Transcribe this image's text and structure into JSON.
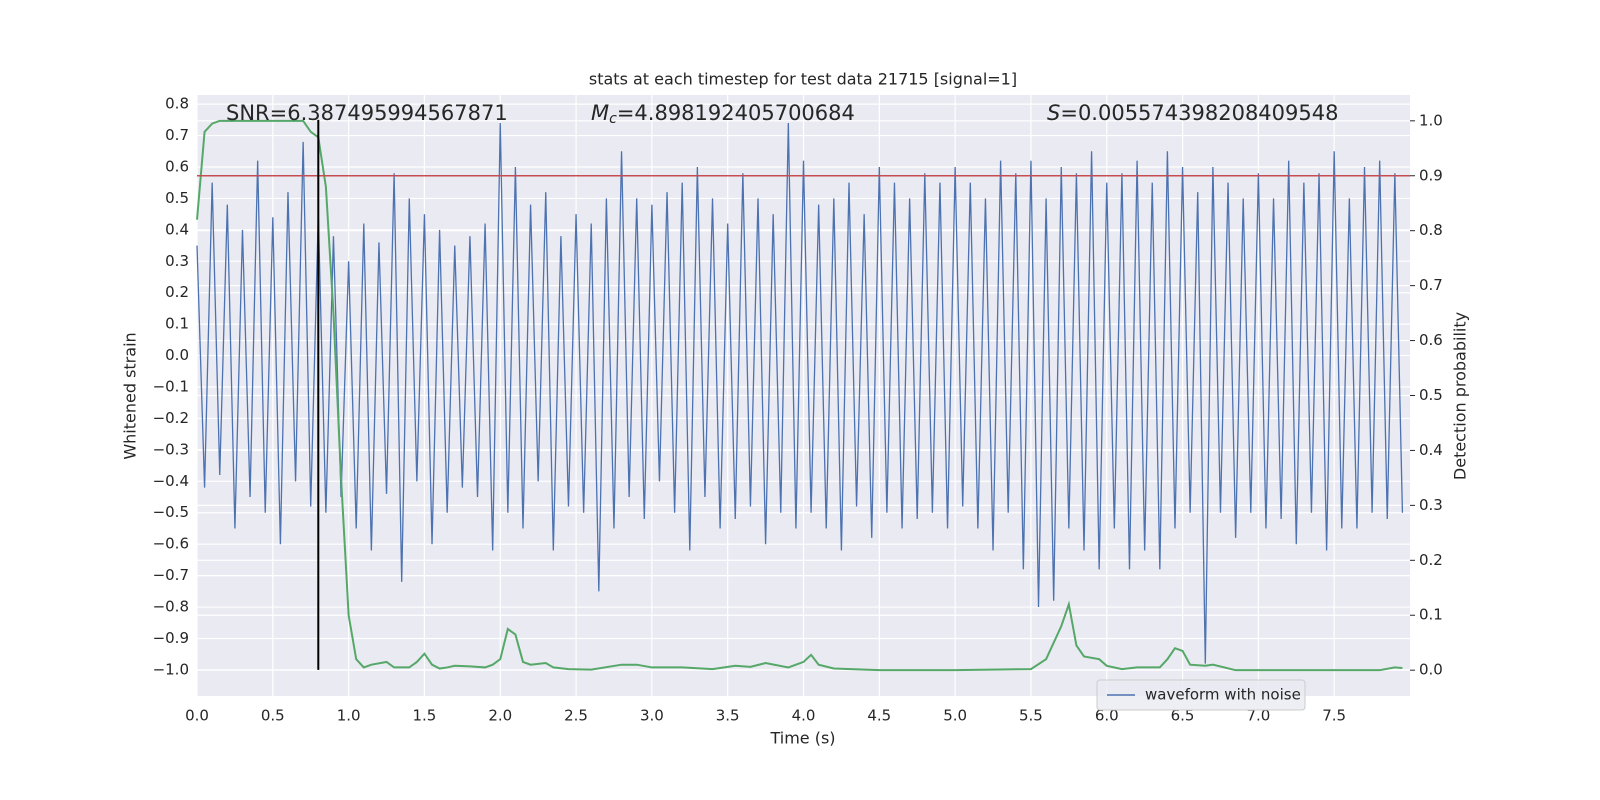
{
  "chart_data": {
    "type": "line",
    "title": "stats at each timestep for test data 21715 [signal=1]",
    "x_label": "Time (s)",
    "y_label": "Whitened strain",
    "y2_label": "Detection probability",
    "annotations": [
      {
        "label": "SNR=6.387495994567871"
      },
      {
        "symbol": "M",
        "subscript": "c",
        "label": "=4.898192405700684"
      },
      {
        "symbol": "S",
        "label": "=0.005574398208409548"
      }
    ],
    "xlim": [
      0,
      8
    ],
    "xticks": [
      {
        "value": 0,
        "label": "0.0"
      },
      {
        "value": 0.5,
        "label": "0.5"
      },
      {
        "value": 1,
        "label": "1.0"
      },
      {
        "value": 1.5,
        "label": "1.5"
      },
      {
        "value": 2,
        "label": "2.0"
      },
      {
        "value": 2.5,
        "label": "2.5"
      },
      {
        "value": 3,
        "label": "3.0"
      },
      {
        "value": 3.5,
        "label": "3.5"
      },
      {
        "value": 4,
        "label": "4.0"
      },
      {
        "value": 4.5,
        "label": "4.5"
      },
      {
        "value": 5,
        "label": "5.0"
      },
      {
        "value": 5.5,
        "label": "5.5"
      },
      {
        "value": 6,
        "label": "6.0"
      },
      {
        "value": 6.5,
        "label": "6.5"
      },
      {
        "value": 7,
        "label": "7.0"
      },
      {
        "value": 7.5,
        "label": "7.5"
      }
    ],
    "ylim": [
      -1.083,
      0.829
    ],
    "yticks": [
      {
        "value": -1.0,
        "label": "−1.0"
      },
      {
        "value": -0.9,
        "label": "−0.9"
      },
      {
        "value": -0.8,
        "label": "−0.8"
      },
      {
        "value": -0.7,
        "label": "−0.7"
      },
      {
        "value": -0.6,
        "label": "−0.6"
      },
      {
        "value": -0.5,
        "label": "−0.5"
      },
      {
        "value": -0.4,
        "label": "−0.4"
      },
      {
        "value": -0.3,
        "label": "−0.3"
      },
      {
        "value": -0.2,
        "label": "−0.2"
      },
      {
        "value": -0.1,
        "label": "−0.1"
      },
      {
        "value": 0,
        "label": "0.0"
      },
      {
        "value": 0.1,
        "label": "0.1"
      },
      {
        "value": 0.2,
        "label": "0.2"
      },
      {
        "value": 0.3,
        "label": "0.3"
      },
      {
        "value": 0.4,
        "label": "0.4"
      },
      {
        "value": 0.5,
        "label": "0.5"
      },
      {
        "value": 0.6,
        "label": "0.6"
      },
      {
        "value": 0.7,
        "label": "0.7"
      },
      {
        "value": 0.8,
        "label": "0.8"
      }
    ],
    "y2lim": [
      -0.047,
      1.047
    ],
    "y2ticks": [
      {
        "value": 0,
        "label": "0.0"
      },
      {
        "value": 0.1,
        "label": "0.1"
      },
      {
        "value": 0.2,
        "label": "0.2"
      },
      {
        "value": 0.3,
        "label": "0.3"
      },
      {
        "value": 0.4,
        "label": "0.4"
      },
      {
        "value": 0.5,
        "label": "0.5"
      },
      {
        "value": 0.6,
        "label": "0.6"
      },
      {
        "value": 0.7,
        "label": "0.7"
      },
      {
        "value": 0.8,
        "label": "0.8"
      },
      {
        "value": 0.9,
        "label": "0.9"
      },
      {
        "value": 1.0,
        "label": "1.0"
      }
    ],
    "grid": true,
    "legend": "lower right",
    "threshold": {
      "value": 0.9,
      "axis": "y2",
      "color": "#c44e52"
    },
    "vline": {
      "x": 0.8,
      "ymin": -1.0,
      "ymax": 0.75,
      "color": "#000000"
    },
    "series": [
      {
        "name": "waveform with noise",
        "color": "#4c72b0",
        "x": [
          0,
          0.05,
          0.1,
          0.15,
          0.2,
          0.25,
          0.3,
          0.35,
          0.4,
          0.45,
          0.5,
          0.55,
          0.6,
          0.65,
          0.7,
          0.75,
          0.8,
          0.85,
          0.9,
          0.95,
          1,
          1.05,
          1.1,
          1.15,
          1.2,
          1.25,
          1.3,
          1.35,
          1.4,
          1.45,
          1.5,
          1.55,
          1.6,
          1.65,
          1.7,
          1.75,
          1.8,
          1.85,
          1.9,
          1.95,
          2,
          2.05,
          2.1,
          2.15,
          2.2,
          2.25,
          2.3,
          2.35,
          2.4,
          2.45,
          2.5,
          2.55,
          2.6,
          2.65,
          2.7,
          2.75,
          2.8,
          2.85,
          2.9,
          2.95,
          3,
          3.05,
          3.1,
          3.15,
          3.2,
          3.25,
          3.3,
          3.35,
          3.4,
          3.45,
          3.5,
          3.55,
          3.6,
          3.65,
          3.7,
          3.75,
          3.8,
          3.85,
          3.9,
          3.95,
          4,
          4.05,
          4.1,
          4.15,
          4.2,
          4.25,
          4.3,
          4.35,
          4.4,
          4.45,
          4.5,
          4.55,
          4.6,
          4.65,
          4.7,
          4.75,
          4.8,
          4.85,
          4.9,
          4.95,
          5,
          5.05,
          5.1,
          5.15,
          5.2,
          5.25,
          5.3,
          5.35,
          5.4,
          5.45,
          5.5,
          5.55,
          5.6,
          5.65,
          5.7,
          5.75,
          5.8,
          5.85,
          5.9,
          5.95,
          6,
          6.05,
          6.1,
          6.15,
          6.2,
          6.25,
          6.3,
          6.35,
          6.4,
          6.45,
          6.5,
          6.55,
          6.6,
          6.65,
          6.7,
          6.75,
          6.8,
          6.85,
          6.9,
          6.95,
          7,
          7.05,
          7.1,
          7.15,
          7.2,
          7.25,
          7.3,
          7.35,
          7.4,
          7.45,
          7.5,
          7.55,
          7.6,
          7.65,
          7.7,
          7.75,
          7.8,
          7.85,
          7.9,
          7.95
        ],
        "values": [
          0.35,
          -0.42,
          0.55,
          -0.38,
          0.48,
          -0.55,
          0.4,
          -0.45,
          0.62,
          -0.5,
          0.44,
          -0.6,
          0.52,
          -0.4,
          0.68,
          -0.48,
          0.45,
          -0.5,
          0.38,
          -0.45,
          0.3,
          -0.55,
          0.42,
          -0.62,
          0.36,
          -0.44,
          0.58,
          -0.72,
          0.5,
          -0.4,
          0.45,
          -0.6,
          0.4,
          -0.5,
          0.35,
          -0.42,
          0.38,
          -0.45,
          0.42,
          -0.62,
          0.74,
          -0.5,
          0.6,
          -0.55,
          0.48,
          -0.4,
          0.52,
          -0.62,
          0.38,
          -0.48,
          0.45,
          -0.5,
          0.42,
          -0.75,
          0.5,
          -0.55,
          0.65,
          -0.45,
          0.5,
          -0.52,
          0.48,
          -0.4,
          0.52,
          -0.5,
          0.55,
          -0.62,
          0.6,
          -0.45,
          0.5,
          -0.55,
          0.42,
          -0.52,
          0.58,
          -0.48,
          0.5,
          -0.6,
          0.45,
          -0.5,
          0.74,
          -0.55,
          0.62,
          -0.5,
          0.48,
          -0.55,
          0.5,
          -0.62,
          0.55,
          -0.48,
          0.45,
          -0.58,
          0.6,
          -0.5,
          0.55,
          -0.55,
          0.5,
          -0.52,
          0.58,
          -0.5,
          0.55,
          -0.55,
          0.6,
          -0.48,
          0.55,
          -0.55,
          0.5,
          -0.62,
          0.62,
          -0.5,
          0.58,
          -0.68,
          0.62,
          -0.8,
          0.5,
          -0.78,
          0.6,
          -0.55,
          0.58,
          -0.62,
          0.65,
          -0.68,
          0.55,
          -0.55,
          0.58,
          -0.68,
          0.62,
          -0.62,
          0.55,
          -0.68,
          0.65,
          -0.55,
          0.6,
          -0.5,
          0.52,
          -0.98,
          0.6,
          -0.5,
          0.55,
          -0.58,
          0.5,
          -0.5,
          0.58,
          -0.55,
          0.5,
          -0.52,
          0.62,
          -0.6,
          0.55,
          -0.5,
          0.58,
          -0.62,
          0.65,
          -0.55,
          0.5,
          -0.55,
          0.6,
          -0.5,
          0.62,
          -0.52,
          0.58,
          -0.5
        ]
      },
      {
        "color": "#55a868",
        "axis": "y2",
        "x": [
          0,
          0.05,
          0.1,
          0.15,
          0.7,
          0.75,
          0.8,
          0.85,
          0.9,
          0.95,
          1,
          1.05,
          1.1,
          1.15,
          1.25,
          1.3,
          1.4,
          1.45,
          1.5,
          1.55,
          1.6,
          1.65,
          1.7,
          1.8,
          1.9,
          1.95,
          2,
          2.05,
          2.1,
          2.15,
          2.2,
          2.3,
          2.35,
          2.45,
          2.6,
          2.8,
          2.9,
          3,
          3.2,
          3.4,
          3.55,
          3.65,
          3.75,
          3.9,
          4,
          4.05,
          4.1,
          4.2,
          4.5,
          5,
          5.5,
          5.6,
          5.7,
          5.75,
          5.8,
          5.85,
          5.95,
          6,
          6.1,
          6.2,
          6.35,
          6.4,
          6.45,
          6.5,
          6.55,
          6.65,
          6.7,
          6.85,
          7,
          7.5,
          7.8,
          7.9,
          7.95
        ],
        "values": [
          0.82,
          0.98,
          0.995,
          1.0,
          1.0,
          0.98,
          0.97,
          0.88,
          0.65,
          0.35,
          0.1,
          0.02,
          0.005,
          0.01,
          0.015,
          0.005,
          0.005,
          0.015,
          0.03,
          0.01,
          0.003,
          0.005,
          0.008,
          0.007,
          0.005,
          0.01,
          0.02,
          0.075,
          0.065,
          0.015,
          0.01,
          0.013,
          0.005,
          0.002,
          0.001,
          0.01,
          0.01,
          0.005,
          0.005,
          0.002,
          0.008,
          0.006,
          0.013,
          0.005,
          0.015,
          0.028,
          0.01,
          0.003,
          0.0,
          0.0,
          0.002,
          0.02,
          0.08,
          0.12,
          0.045,
          0.025,
          0.02,
          0.008,
          0.002,
          0.005,
          0.005,
          0.02,
          0.04,
          0.035,
          0.01,
          0.008,
          0.01,
          0.0,
          0.0,
          0.0,
          0.0,
          0.005,
          0.004
        ]
      }
    ]
  }
}
